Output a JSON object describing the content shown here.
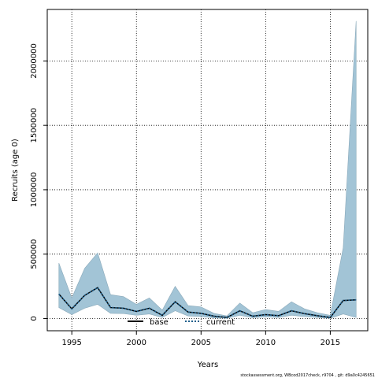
{
  "chart_data": {
    "type": "area",
    "xlabel": "Years",
    "ylabel": "Recruits (age 0)",
    "xlim": [
      1993.1,
      2017.9
    ],
    "ylim": [
      -95000,
      2400000
    ],
    "xticks": [
      1995,
      2000,
      2005,
      2010,
      2015
    ],
    "yticks": [
      0,
      500000,
      1000000,
      1500000,
      2000000
    ],
    "xtick_labels": [
      "1995",
      "2000",
      "2005",
      "2010",
      "2015"
    ],
    "ytick_labels": [
      "0",
      "500000",
      "1000000",
      "1500000",
      "2000000"
    ],
    "grid": true,
    "x": [
      1994,
      1995,
      1996,
      1997,
      1998,
      1999,
      2000,
      2001,
      2002,
      2003,
      2004,
      2005,
      2006,
      2007,
      2008,
      2009,
      2010,
      2011,
      2012,
      2013,
      2014,
      2015,
      2016,
      2017
    ],
    "series": [
      {
        "name": "base",
        "style": "solid",
        "color": "#000000",
        "values": [
          190000,
          75000,
          180000,
          240000,
          85000,
          80000,
          55000,
          80000,
          25000,
          130000,
          50000,
          40000,
          18000,
          8000,
          60000,
          18000,
          30000,
          22000,
          60000,
          38000,
          22000,
          8000,
          140000,
          145000
        ]
      },
      {
        "name": "current",
        "style": "dotted",
        "color": "#1f5f8b",
        "values": [
          190000,
          75000,
          180000,
          240000,
          85000,
          80000,
          55000,
          80000,
          25000,
          130000,
          50000,
          40000,
          18000,
          8000,
          60000,
          18000,
          30000,
          22000,
          60000,
          38000,
          22000,
          8000,
          140000,
          145000
        ]
      }
    ],
    "ci_band": {
      "color": "#a2c4d6",
      "upper": [
        430000,
        160000,
        390000,
        510000,
        185000,
        170000,
        110000,
        160000,
        65000,
        250000,
        100000,
        90000,
        40000,
        20000,
        120000,
        45000,
        70000,
        55000,
        130000,
        75000,
        45000,
        25000,
        550000,
        2310000
      ],
      "lower": [
        85000,
        30000,
        80000,
        110000,
        40000,
        38000,
        25000,
        35000,
        8000,
        60000,
        20000,
        15000,
        5000,
        2000,
        25000,
        6000,
        12000,
        8000,
        25000,
        15000,
        8000,
        2000,
        35000,
        8000
      ]
    },
    "legend_position": "bottom-center"
  },
  "footer": "stockassessment.org, WBcod2017check, r9704 , git: d9a0c4245651"
}
